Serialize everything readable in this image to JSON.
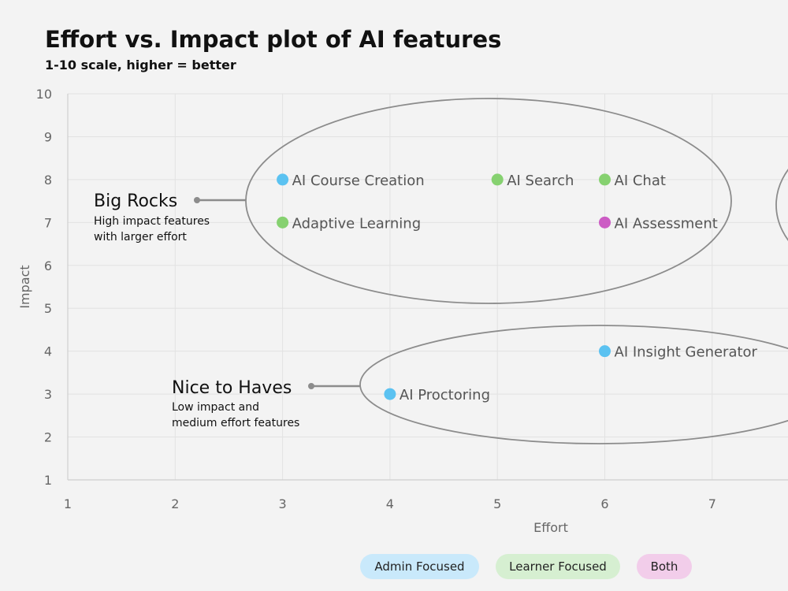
{
  "title": "Effort vs. Impact plot of AI features",
  "subtitle": "1-10 scale, higher = better",
  "chart_data": {
    "type": "scatter",
    "xlabel": "Effort",
    "ylabel": "Impact",
    "xlim": [
      1,
      8
    ],
    "ylim": [
      1,
      10
    ],
    "x_ticks": [
      1,
      2,
      3,
      4,
      5,
      6,
      7
    ],
    "y_ticks": [
      1,
      2,
      3,
      4,
      5,
      6,
      7,
      8,
      9,
      10
    ],
    "grid": true,
    "legend_position": "bottom",
    "categories": [
      {
        "name": "Admin Focused",
        "color": "#5bc2f1",
        "bg": "#c9e9fb"
      },
      {
        "name": "Learner Focused",
        "color": "#86d170",
        "bg": "#d6efd1"
      },
      {
        "name": "Both",
        "color": "#cc5cc4",
        "bg": "#f2cdea"
      }
    ],
    "points": [
      {
        "label": "AI Course Creation",
        "x": 3,
        "y": 8,
        "category": "Admin Focused"
      },
      {
        "label": "AI Search",
        "x": 5,
        "y": 8,
        "category": "Learner Focused"
      },
      {
        "label": "AI Chat",
        "x": 6,
        "y": 8,
        "category": "Learner Focused"
      },
      {
        "label": "Adaptive Learning",
        "x": 3,
        "y": 7,
        "category": "Learner Focused"
      },
      {
        "label": "AI Assessment",
        "x": 6,
        "y": 7,
        "category": "Both"
      },
      {
        "label": "AI Insight Generator",
        "x": 6,
        "y": 4,
        "category": "Admin Focused"
      },
      {
        "label": "AI Proctoring",
        "x": 4,
        "y": 3,
        "category": "Admin Focused"
      }
    ],
    "annotations": [
      {
        "title": "Big Rocks",
        "lines": [
          "High impact features",
          "with larger effort"
        ]
      },
      {
        "title": "Nice to Haves",
        "lines": [
          "Low impact and",
          "medium effort features"
        ]
      }
    ]
  },
  "legend": {
    "admin": "Admin Focused",
    "learner": "Learner Focused",
    "both": "Both"
  }
}
